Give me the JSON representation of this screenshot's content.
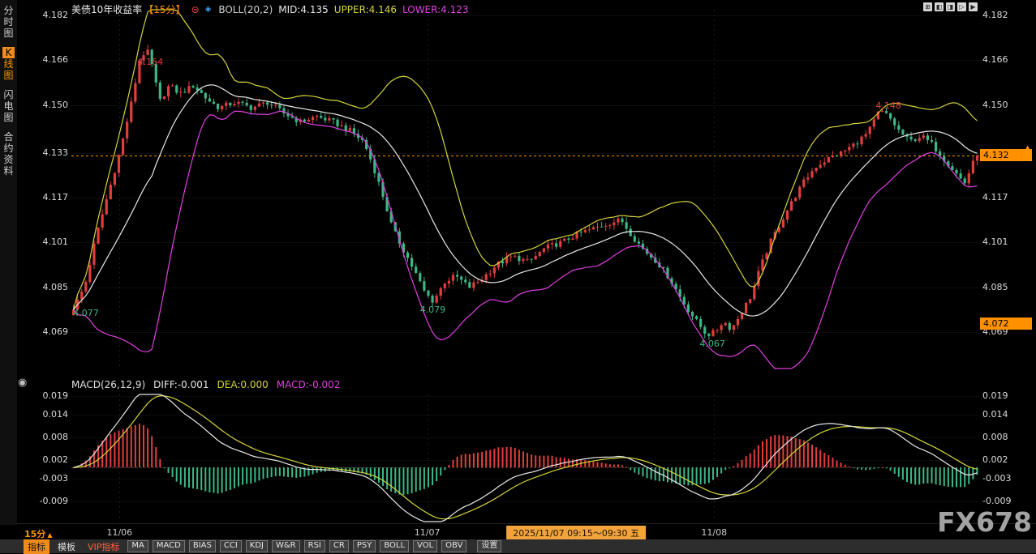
{
  "header": {
    "title": "美债10年收益率",
    "period_tag": "【15分】",
    "boll_label": "BOLL(20,2)",
    "mid_label": "MID:4.135",
    "upper_label": "UPPER:4.146",
    "lower_label": "LOWER:4.123"
  },
  "macd_header": {
    "name": "MACD(26,12,9)",
    "diff": "DIFF:-0.001",
    "dea": "DEA:0.000",
    "macd": "MACD:-0.002"
  },
  "sidebar": {
    "items": [
      {
        "label": "分时图",
        "name": "time-chart",
        "active": false
      },
      {
        "label": "K线图",
        "name": "kline-chart",
        "active": true
      },
      {
        "label": "闪电图",
        "name": "flash-chart",
        "active": false
      },
      {
        "label": "合约资料",
        "name": "contract-info",
        "active": false
      }
    ]
  },
  "window_controls": [
    "⊞",
    "◧",
    "◨",
    "▷",
    "▶"
  ],
  "icons": {
    "alarm": "⊜",
    "indicator_picker": "◈",
    "collapse": "◉",
    "caret_up": "▲",
    "marker_up": "▲",
    "marker_down": "▼"
  },
  "xaxis": {
    "period": "15分",
    "dates": [
      {
        "label": "11/06",
        "t": 0.053
      },
      {
        "label": "11/07",
        "t": 0.392
      },
      {
        "label": "11/08",
        "t": 0.708
      }
    ],
    "highlight": {
      "text": "2025/11/07 09:15～09:30 五",
      "t": 0.556
    }
  },
  "toolbar": {
    "tabs": [
      {
        "label": "指标",
        "style": "active",
        "name": "tab-indicators"
      },
      {
        "label": "模板",
        "style": "normal",
        "name": "tab-templates"
      },
      {
        "label": "VIP指标",
        "style": "vip",
        "name": "tab-vip-indicators"
      }
    ],
    "buttons": [
      "MA",
      "MACD",
      "BIAS",
      "CCI",
      "KDJ",
      "W&R",
      "RSI",
      "CR",
      "PSY",
      "BOLL",
      "VOL",
      "OBV"
    ],
    "settings": "设置"
  },
  "watermark": "FX678",
  "colors": {
    "up": "#e23e3e",
    "down": "#3db786",
    "boll_upper": "#d4d43c",
    "boll_mid": "#e8e8e8",
    "boll_lower": "#e040e0",
    "accent_orange": "#ff9500",
    "diff_line": "#e8e8e8",
    "dea_line": "#d4d43c",
    "highlight_bg": "#f2a33c"
  },
  "chart_data": {
    "type": "candlestick",
    "instrument": "美债10年收益率",
    "interval": "15分",
    "panels": [
      "price+BOLL(20,2)",
      "MACD(26,12,9)"
    ],
    "ylim_main": [
      4.056,
      4.184
    ],
    "yticks_main": [
      4.182,
      4.166,
      4.15,
      4.133,
      4.117,
      4.101,
      4.085,
      4.069
    ],
    "yticks_macd": [
      0.019,
      0.014,
      0.008,
      0.002,
      -0.003,
      -0.009
    ],
    "current_price": 4.132,
    "secondary_marker": 4.072,
    "boll": {
      "period": 20,
      "k": 2,
      "mid": 4.135,
      "upper": 4.146,
      "lower": 4.123
    },
    "macd": {
      "params": [
        26,
        12,
        9
      ],
      "diff": -0.001,
      "dea": 0.0,
      "macd": -0.002
    },
    "key_points": [
      {
        "label": "4.164",
        "value": 4.164,
        "kind": "high",
        "t": 0.073,
        "anchor": 4.1635,
        "pos": "above"
      },
      {
        "label": "4.077",
        "value": 4.077,
        "kind": "low",
        "t": 0.002,
        "anchor": 4.078,
        "pos": "below"
      },
      {
        "label": "4.079",
        "value": 4.079,
        "kind": "low",
        "t": 0.384,
        "anchor": 4.079,
        "pos": "below"
      },
      {
        "label": "4.067",
        "value": 4.067,
        "kind": "low",
        "t": 0.692,
        "anchor": 4.067,
        "pos": "below"
      },
      {
        "label": "4.148",
        "value": 4.148,
        "kind": "high",
        "t": 0.886,
        "anchor": 4.148,
        "pos": "above"
      }
    ],
    "num_candles": 220,
    "price_path": [
      [
        0.0,
        4.077
      ],
      [
        0.013,
        4.086
      ],
      [
        0.025,
        4.103
      ],
      [
        0.038,
        4.118
      ],
      [
        0.052,
        4.134
      ],
      [
        0.065,
        4.152
      ],
      [
        0.073,
        4.166
      ],
      [
        0.081,
        4.17
      ],
      [
        0.088,
        4.163
      ],
      [
        0.095,
        4.151
      ],
      [
        0.106,
        4.157
      ],
      [
        0.118,
        4.154
      ],
      [
        0.133,
        4.157
      ],
      [
        0.148,
        4.152
      ],
      [
        0.161,
        4.149
      ],
      [
        0.179,
        4.151
      ],
      [
        0.197,
        4.149
      ],
      [
        0.215,
        4.151
      ],
      [
        0.233,
        4.147
      ],
      [
        0.251,
        4.144
      ],
      [
        0.269,
        4.146
      ],
      [
        0.287,
        4.144
      ],
      [
        0.305,
        4.141
      ],
      [
        0.321,
        4.137
      ],
      [
        0.332,
        4.128
      ],
      [
        0.343,
        4.117
      ],
      [
        0.353,
        4.106
      ],
      [
        0.364,
        4.099
      ],
      [
        0.377,
        4.091
      ],
      [
        0.389,
        4.083
      ],
      [
        0.398,
        4.08
      ],
      [
        0.411,
        4.087
      ],
      [
        0.423,
        4.089
      ],
      [
        0.438,
        4.085
      ],
      [
        0.452,
        4.088
      ],
      [
        0.468,
        4.093
      ],
      [
        0.486,
        4.096
      ],
      [
        0.504,
        4.094
      ],
      [
        0.522,
        4.099
      ],
      [
        0.54,
        4.101
      ],
      [
        0.558,
        4.104
      ],
      [
        0.576,
        4.106
      ],
      [
        0.594,
        4.108
      ],
      [
        0.606,
        4.109
      ],
      [
        0.619,
        4.103
      ],
      [
        0.632,
        4.098
      ],
      [
        0.646,
        4.094
      ],
      [
        0.66,
        4.088
      ],
      [
        0.674,
        4.08
      ],
      [
        0.689,
        4.073
      ],
      [
        0.701,
        4.068
      ],
      [
        0.71,
        4.069
      ],
      [
        0.719,
        4.073
      ],
      [
        0.728,
        4.07
      ],
      [
        0.739,
        4.076
      ],
      [
        0.75,
        4.082
      ],
      [
        0.76,
        4.092
      ],
      [
        0.771,
        4.101
      ],
      [
        0.784,
        4.109
      ],
      [
        0.796,
        4.116
      ],
      [
        0.809,
        4.123
      ],
      [
        0.821,
        4.128
      ],
      [
        0.836,
        4.131
      ],
      [
        0.85,
        4.133
      ],
      [
        0.864,
        4.136
      ],
      [
        0.879,
        4.14
      ],
      [
        0.892,
        4.148
      ],
      [
        0.902,
        4.146
      ],
      [
        0.913,
        4.141
      ],
      [
        0.925,
        4.137
      ],
      [
        0.938,
        4.139
      ],
      [
        0.95,
        4.136
      ],
      [
        0.963,
        4.131
      ],
      [
        0.976,
        4.126
      ],
      [
        0.986,
        4.122
      ],
      [
        0.995,
        4.129
      ],
      [
        1.0,
        4.132
      ]
    ]
  }
}
